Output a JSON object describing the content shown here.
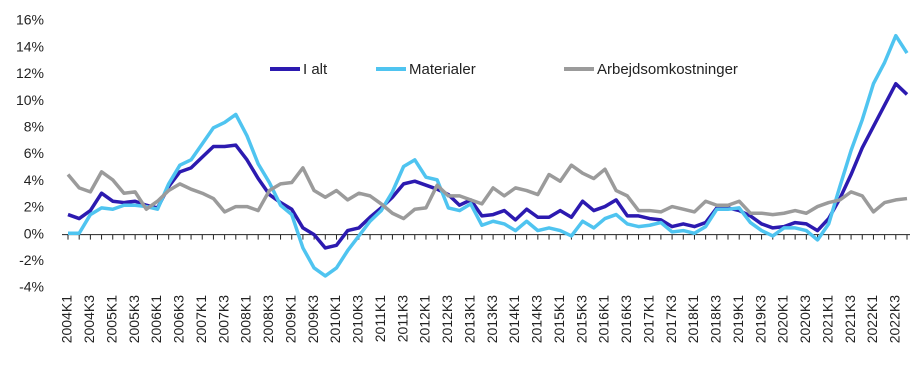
{
  "chart_data": {
    "type": "line",
    "categories": [
      "2004K1",
      null,
      "2004K3",
      null,
      "2005K1",
      null,
      "2005K3",
      null,
      "2006K1",
      null,
      "2006K3",
      null,
      "2007K1",
      null,
      "2007K3",
      null,
      "2008K1",
      null,
      "2008K3",
      null,
      "2009K1",
      null,
      "2009K3",
      null,
      "2010K1",
      null,
      "2010K3",
      null,
      "2011K1",
      null,
      "2011K3",
      null,
      "2012K1",
      null,
      "2012K3",
      null,
      "2013K1",
      null,
      "2013K3",
      null,
      "2014K1",
      null,
      "2014K3",
      null,
      "2015K1",
      null,
      "2015K3",
      null,
      "2016K1",
      null,
      "2016K3",
      null,
      "2017K1",
      null,
      "2017K3",
      null,
      "2018K1",
      null,
      "2018K3",
      null,
      "2019K1",
      null,
      "2019K3",
      null,
      "2020K1",
      null,
      "2020K3",
      null,
      "2021K1",
      null,
      "2021K3",
      null,
      "2022K1",
      null,
      "2022K3",
      null
    ],
    "series": [
      {
        "name": "I alt",
        "color": "#2c1ab0",
        "values": [
          1.5,
          1.2,
          1.8,
          3.1,
          2.5,
          2.4,
          2.5,
          2.2,
          2.0,
          3.6,
          4.7,
          5.0,
          5.8,
          6.6,
          6.6,
          6.7,
          5.6,
          4.2,
          3.0,
          2.4,
          1.9,
          0.5,
          0.0,
          -1.0,
          -0.8,
          0.3,
          0.5,
          1.3,
          2.0,
          2.8,
          3.8,
          4.0,
          3.7,
          3.4,
          3.0,
          2.2,
          2.6,
          1.4,
          1.5,
          1.8,
          1.1,
          1.9,
          1.3,
          1.3,
          1.8,
          1.3,
          2.5,
          1.8,
          2.1,
          2.6,
          1.4,
          1.4,
          1.2,
          1.1,
          0.6,
          0.8,
          0.6,
          0.9,
          2.0,
          2.0,
          1.8,
          1.4,
          0.8,
          0.5,
          0.6,
          0.9,
          0.8,
          0.3,
          1.2,
          2.7,
          4.5,
          6.5,
          8.1,
          9.7,
          11.3,
          10.5
        ]
      },
      {
        "name": "Materialer",
        "color": "#4fc4f0",
        "values": [
          0.1,
          0.1,
          1.5,
          2.0,
          1.9,
          2.2,
          2.2,
          2.1,
          1.9,
          3.8,
          5.2,
          5.6,
          6.8,
          8.0,
          8.4,
          9.0,
          7.4,
          5.3,
          3.9,
          2.2,
          1.5,
          -1.0,
          -2.5,
          -3.1,
          -2.5,
          -1.2,
          -0.1,
          1.0,
          1.8,
          3.2,
          5.1,
          5.6,
          4.3,
          4.1,
          2.0,
          1.8,
          2.3,
          0.7,
          1.0,
          0.8,
          0.3,
          1.0,
          0.3,
          0.5,
          0.3,
          -0.1,
          1.0,
          0.5,
          1.2,
          1.5,
          0.8,
          0.6,
          0.7,
          0.9,
          0.2,
          0.3,
          0.1,
          0.6,
          1.9,
          1.9,
          2.0,
          0.9,
          0.3,
          -0.1,
          0.5,
          0.5,
          0.3,
          -0.4,
          0.8,
          3.6,
          6.3,
          8.6,
          11.3,
          12.9,
          14.9,
          13.6
        ]
      },
      {
        "name": "Arbejdsomkostninger",
        "color": "#9b9b9b",
        "values": [
          4.5,
          3.5,
          3.2,
          4.7,
          4.1,
          3.1,
          3.2,
          1.9,
          2.5,
          3.3,
          3.8,
          3.4,
          3.1,
          2.7,
          1.7,
          2.1,
          2.1,
          1.8,
          3.3,
          3.8,
          3.9,
          5.0,
          3.3,
          2.8,
          3.3,
          2.6,
          3.1,
          2.9,
          2.3,
          1.6,
          1.2,
          1.9,
          2.0,
          3.7,
          2.9,
          2.9,
          2.6,
          2.3,
          3.5,
          2.9,
          3.5,
          3.3,
          3.0,
          4.5,
          4.0,
          5.2,
          4.6,
          4.2,
          4.9,
          3.3,
          2.9,
          1.8,
          1.8,
          1.7,
          2.1,
          1.9,
          1.7,
          2.5,
          2.2,
          2.2,
          2.5,
          1.6,
          1.6,
          1.5,
          1.6,
          1.8,
          1.6,
          2.1,
          2.4,
          2.6,
          3.2,
          2.9,
          1.7,
          2.4,
          2.6,
          2.7
        ]
      }
    ],
    "ylim": [
      -4,
      16
    ],
    "yticks": [
      {
        "value": -4,
        "label": "-4%"
      },
      {
        "value": -2,
        "label": "-2%"
      },
      {
        "value": 0,
        "label": "0%"
      },
      {
        "value": 2,
        "label": "2%"
      },
      {
        "value": 4,
        "label": "4%"
      },
      {
        "value": 6,
        "label": "6%"
      },
      {
        "value": 8,
        "label": "8%"
      },
      {
        "value": 10,
        "label": "10%"
      },
      {
        "value": 12,
        "label": "12%"
      },
      {
        "value": 14,
        "label": "14%"
      },
      {
        "value": 16,
        "label": "16%"
      }
    ],
    "grid": false,
    "legend": "top"
  }
}
